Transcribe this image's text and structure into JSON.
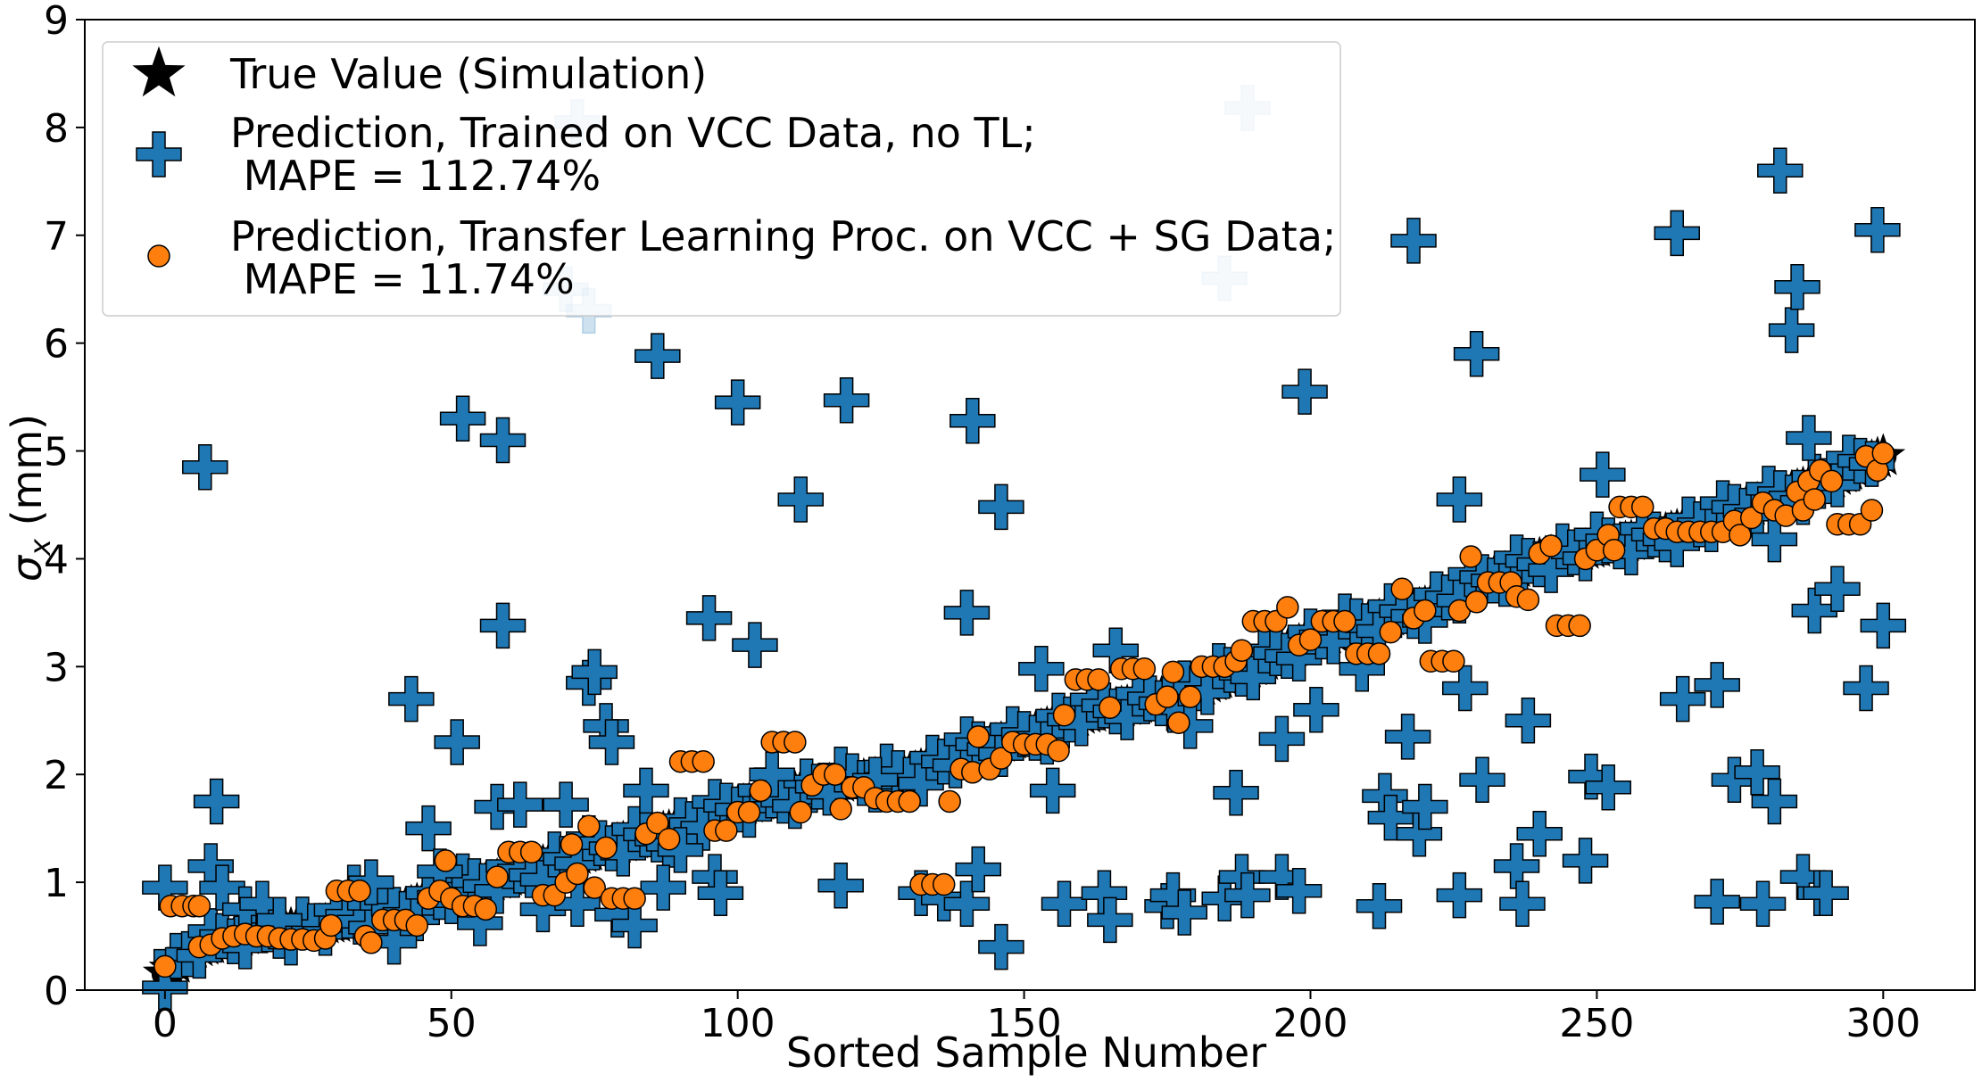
{
  "chart_data": {
    "type": "scatter",
    "xlabel": "Sorted Sample Number",
    "ylabel_symbol": "σ",
    "ylabel_subscript": "x",
    "ylabel_unit": " (mm)",
    "xlim": [
      -14,
      316
    ],
    "ylim": [
      0,
      9
    ],
    "xticks": [
      0,
      50,
      100,
      150,
      200,
      250,
      300
    ],
    "yticks": [
      0,
      1,
      2,
      3,
      4,
      5,
      6,
      7,
      8,
      9
    ],
    "grid": false,
    "legend_position": "top-left",
    "colors": {
      "true": "#000000",
      "vcc": "#1f77b4",
      "tl": "#ff7f0e"
    },
    "series": [
      {
        "name": "true",
        "marker": "star",
        "label_lines": [
          "True Value (Simulation)"
        ],
        "line_start": [
          0,
          0.15
        ],
        "line_end": [
          300,
          4.95
        ],
        "segments": [
          [
            0,
            0.15
          ],
          [
            5,
            0.38
          ],
          [
            15,
            0.52
          ],
          [
            30,
            0.62
          ],
          [
            40,
            0.72
          ],
          [
            50,
            0.9
          ],
          [
            60,
            1.05
          ],
          [
            75,
            1.3
          ],
          [
            90,
            1.5
          ],
          [
            100,
            1.7
          ],
          [
            115,
            1.9
          ],
          [
            130,
            2.0
          ],
          [
            140,
            2.2
          ],
          [
            150,
            2.35
          ],
          [
            160,
            2.55
          ],
          [
            170,
            2.65
          ],
          [
            180,
            2.8
          ],
          [
            190,
            3.0
          ],
          [
            200,
            3.25
          ],
          [
            210,
            3.4
          ],
          [
            220,
            3.55
          ],
          [
            230,
            3.78
          ],
          [
            240,
            4.0
          ],
          [
            250,
            4.1
          ],
          [
            260,
            4.2
          ],
          [
            270,
            4.35
          ],
          [
            280,
            4.55
          ],
          [
            290,
            4.72
          ],
          [
            300,
            4.95
          ]
        ]
      },
      {
        "name": "vcc",
        "marker": "plus",
        "label_lines": [
          "Prediction, Trained on VCC Data, no TL;",
          " MAPE = 112.74%"
        ],
        "outliers": [
          [
            0,
            0.95
          ],
          [
            7,
            4.85
          ],
          [
            8,
            1.15
          ],
          [
            9,
            1.75
          ],
          [
            10,
            0.95
          ],
          [
            14,
            0.75
          ],
          [
            17,
            0.8
          ],
          [
            20,
            0.65
          ],
          [
            33,
            0.95
          ],
          [
            36,
            1.0
          ],
          [
            40,
            0.45
          ],
          [
            43,
            2.7
          ],
          [
            46,
            1.5
          ],
          [
            48,
            1.1
          ],
          [
            51,
            2.3
          ],
          [
            52,
            5.3
          ],
          [
            55,
            0.62
          ],
          [
            58,
            1.7
          ],
          [
            59,
            5.1
          ],
          [
            59,
            3.38
          ],
          [
            62,
            1.72
          ],
          [
            66,
            0.75
          ],
          [
            70,
            1.72
          ],
          [
            72,
            0.8
          ],
          [
            74,
            2.85
          ],
          [
            75,
            2.95
          ],
          [
            77,
            2.45
          ],
          [
            78,
            2.3
          ],
          [
            79,
            0.7
          ],
          [
            82,
            0.6
          ],
          [
            84,
            1.85
          ],
          [
            86,
            5.88
          ],
          [
            87,
            0.95
          ],
          [
            90,
            1.3
          ],
          [
            95,
            3.45
          ],
          [
            96,
            1.05
          ],
          [
            97,
            0.9
          ],
          [
            100,
            5.45
          ],
          [
            103,
            3.2
          ],
          [
            106,
            2.0
          ],
          [
            111,
            4.55
          ],
          [
            119,
            5.47
          ],
          [
            118,
            0.97
          ],
          [
            124,
            1.95
          ],
          [
            132,
            0.9
          ],
          [
            136,
            0.85
          ],
          [
            140,
            0.8
          ],
          [
            140,
            3.5
          ],
          [
            141,
            5.28
          ],
          [
            142,
            1.12
          ],
          [
            146,
            0.4
          ],
          [
            146,
            4.48
          ],
          [
            153,
            2.98
          ],
          [
            155,
            1.85
          ],
          [
            157,
            0.8
          ],
          [
            164,
            0.9
          ],
          [
            165,
            0.65
          ],
          [
            166,
            3.15
          ],
          [
            175,
            0.78
          ],
          [
            176,
            0.88
          ],
          [
            178,
            0.72
          ],
          [
            179,
            2.45
          ],
          [
            185,
            0.85
          ],
          [
            187,
            1.83
          ],
          [
            188,
            1.05
          ],
          [
            189,
            0.88
          ],
          [
            195,
            1.05
          ],
          [
            195,
            2.33
          ],
          [
            198,
            0.92
          ],
          [
            199,
            5.55
          ],
          [
            201,
            2.6
          ],
          [
            209,
            2.98
          ],
          [
            212,
            0.78
          ],
          [
            213,
            1.8
          ],
          [
            214,
            1.6
          ],
          [
            217,
            2.35
          ],
          [
            218,
            6.95
          ],
          [
            219,
            1.45
          ],
          [
            220,
            1.7
          ],
          [
            226,
            0.88
          ],
          [
            226,
            4.55
          ],
          [
            227,
            2.8
          ],
          [
            229,
            5.9
          ],
          [
            230,
            1.95
          ],
          [
            236,
            1.15
          ],
          [
            237,
            0.8
          ],
          [
            238,
            2.5
          ],
          [
            240,
            1.45
          ],
          [
            248,
            1.2
          ],
          [
            249,
            1.98
          ],
          [
            251,
            4.78
          ],
          [
            252,
            1.88
          ],
          [
            264,
            7.02
          ],
          [
            265,
            2.7
          ],
          [
            271,
            2.83
          ],
          [
            271,
            0.82
          ],
          [
            274,
            1.95
          ],
          [
            278,
            2.02
          ],
          [
            279,
            0.8
          ],
          [
            281,
            1.75
          ],
          [
            281,
            4.18
          ],
          [
            282,
            7.6
          ],
          [
            284,
            6.12
          ],
          [
            285,
            6.52
          ],
          [
            286,
            1.05
          ],
          [
            287,
            5.12
          ],
          [
            288,
            3.52
          ],
          [
            289,
            0.9
          ],
          [
            290,
            0.9
          ],
          [
            292,
            3.72
          ],
          [
            297,
            2.8
          ],
          [
            299,
            7.05
          ],
          [
            300,
            3.38
          ]
        ],
        "faded": [
          [
            70,
            6.5
          ],
          [
            72,
            8.05
          ],
          [
            74,
            6.3
          ],
          [
            185,
            6.6
          ],
          [
            189,
            8.18
          ]
        ]
      },
      {
        "name": "tl",
        "marker": "circle",
        "label_lines": [
          "Prediction, Transfer Learning Proc. on VCC + SG Data;",
          " MAPE = 11.74%"
        ],
        "points": [
          [
            0,
            0.22
          ],
          [
            1,
            0.78
          ],
          [
            3,
            0.78
          ],
          [
            5,
            0.78
          ],
          [
            6,
            0.78
          ],
          [
            6,
            0.4
          ],
          [
            8,
            0.42
          ],
          [
            10,
            0.48
          ],
          [
            12,
            0.5
          ],
          [
            14,
            0.52
          ],
          [
            16,
            0.5
          ],
          [
            18,
            0.5
          ],
          [
            20,
            0.48
          ],
          [
            22,
            0.47
          ],
          [
            24,
            0.47
          ],
          [
            26,
            0.46
          ],
          [
            28,
            0.48
          ],
          [
            29,
            0.6
          ],
          [
            30,
            0.92
          ],
          [
            32,
            0.92
          ],
          [
            34,
            0.92
          ],
          [
            35,
            0.5
          ],
          [
            36,
            0.44
          ],
          [
            38,
            0.65
          ],
          [
            40,
            0.65
          ],
          [
            42,
            0.65
          ],
          [
            44,
            0.6
          ],
          [
            46,
            0.85
          ],
          [
            48,
            0.92
          ],
          [
            49,
            1.2
          ],
          [
            50,
            0.85
          ],
          [
            52,
            0.78
          ],
          [
            54,
            0.78
          ],
          [
            56,
            0.75
          ],
          [
            58,
            1.05
          ],
          [
            60,
            1.28
          ],
          [
            62,
            1.28
          ],
          [
            64,
            1.28
          ],
          [
            66,
            0.88
          ],
          [
            68,
            0.88
          ],
          [
            70,
            1.0
          ],
          [
            71,
            1.35
          ],
          [
            72,
            1.08
          ],
          [
            74,
            1.52
          ],
          [
            75,
            0.95
          ],
          [
            77,
            1.32
          ],
          [
            78,
            0.85
          ],
          [
            80,
            0.85
          ],
          [
            82,
            0.85
          ],
          [
            84,
            1.45
          ],
          [
            86,
            1.55
          ],
          [
            88,
            1.4
          ],
          [
            90,
            2.12
          ],
          [
            92,
            2.12
          ],
          [
            94,
            2.12
          ],
          [
            96,
            1.48
          ],
          [
            98,
            1.48
          ],
          [
            100,
            1.65
          ],
          [
            102,
            1.65
          ],
          [
            104,
            1.85
          ],
          [
            106,
            2.3
          ],
          [
            108,
            2.3
          ],
          [
            110,
            2.3
          ],
          [
            111,
            1.65
          ],
          [
            113,
            1.9
          ],
          [
            115,
            2.0
          ],
          [
            117,
            2.0
          ],
          [
            118,
            1.68
          ],
          [
            120,
            1.88
          ],
          [
            122,
            1.88
          ],
          [
            124,
            1.78
          ],
          [
            126,
            1.75
          ],
          [
            128,
            1.75
          ],
          [
            130,
            1.75
          ],
          [
            132,
            0.98
          ],
          [
            134,
            0.98
          ],
          [
            136,
            0.98
          ],
          [
            137,
            1.75
          ],
          [
            139,
            2.05
          ],
          [
            141,
            2.02
          ],
          [
            142,
            2.35
          ],
          [
            144,
            2.05
          ],
          [
            146,
            2.15
          ],
          [
            148,
            2.3
          ],
          [
            150,
            2.28
          ],
          [
            152,
            2.28
          ],
          [
            154,
            2.28
          ],
          [
            156,
            2.22
          ],
          [
            157,
            2.55
          ],
          [
            159,
            2.88
          ],
          [
            161,
            2.88
          ],
          [
            163,
            2.88
          ],
          [
            165,
            2.62
          ],
          [
            167,
            2.98
          ],
          [
            169,
            2.98
          ],
          [
            171,
            2.98
          ],
          [
            173,
            2.65
          ],
          [
            175,
            2.72
          ],
          [
            176,
            2.95
          ],
          [
            177,
            2.48
          ],
          [
            179,
            2.72
          ],
          [
            181,
            3.0
          ],
          [
            183,
            3.0
          ],
          [
            185,
            3.0
          ],
          [
            187,
            3.05
          ],
          [
            188,
            3.15
          ],
          [
            190,
            3.42
          ],
          [
            192,
            3.42
          ],
          [
            194,
            3.42
          ],
          [
            196,
            3.55
          ],
          [
            198,
            3.2
          ],
          [
            200,
            3.25
          ],
          [
            202,
            3.42
          ],
          [
            204,
            3.42
          ],
          [
            206,
            3.42
          ],
          [
            208,
            3.12
          ],
          [
            210,
            3.12
          ],
          [
            212,
            3.12
          ],
          [
            214,
            3.32
          ],
          [
            216,
            3.72
          ],
          [
            218,
            3.45
          ],
          [
            220,
            3.52
          ],
          [
            221,
            3.05
          ],
          [
            223,
            3.05
          ],
          [
            225,
            3.05
          ],
          [
            226,
            3.52
          ],
          [
            228,
            4.02
          ],
          [
            229,
            3.6
          ],
          [
            231,
            3.78
          ],
          [
            233,
            3.78
          ],
          [
            235,
            3.78
          ],
          [
            236,
            3.65
          ],
          [
            238,
            3.62
          ],
          [
            240,
            4.05
          ],
          [
            242,
            4.12
          ],
          [
            243,
            3.38
          ],
          [
            245,
            3.38
          ],
          [
            247,
            3.38
          ],
          [
            248,
            4.0
          ],
          [
            250,
            4.08
          ],
          [
            252,
            4.22
          ],
          [
            253,
            4.08
          ],
          [
            254,
            4.48
          ],
          [
            256,
            4.48
          ],
          [
            258,
            4.48
          ],
          [
            260,
            4.28
          ],
          [
            262,
            4.28
          ],
          [
            264,
            4.25
          ],
          [
            266,
            4.25
          ],
          [
            268,
            4.25
          ],
          [
            270,
            4.25
          ],
          [
            272,
            4.25
          ],
          [
            274,
            4.35
          ],
          [
            275,
            4.22
          ],
          [
            277,
            4.38
          ],
          [
            279,
            4.52
          ],
          [
            281,
            4.45
          ],
          [
            283,
            4.4
          ],
          [
            285,
            4.62
          ],
          [
            286,
            4.45
          ],
          [
            287,
            4.72
          ],
          [
            288,
            4.55
          ],
          [
            289,
            4.82
          ],
          [
            291,
            4.72
          ],
          [
            292,
            4.32
          ],
          [
            294,
            4.32
          ],
          [
            296,
            4.32
          ],
          [
            297,
            4.95
          ],
          [
            298,
            4.45
          ],
          [
            299,
            4.82
          ],
          [
            300,
            4.98
          ]
        ]
      }
    ]
  }
}
